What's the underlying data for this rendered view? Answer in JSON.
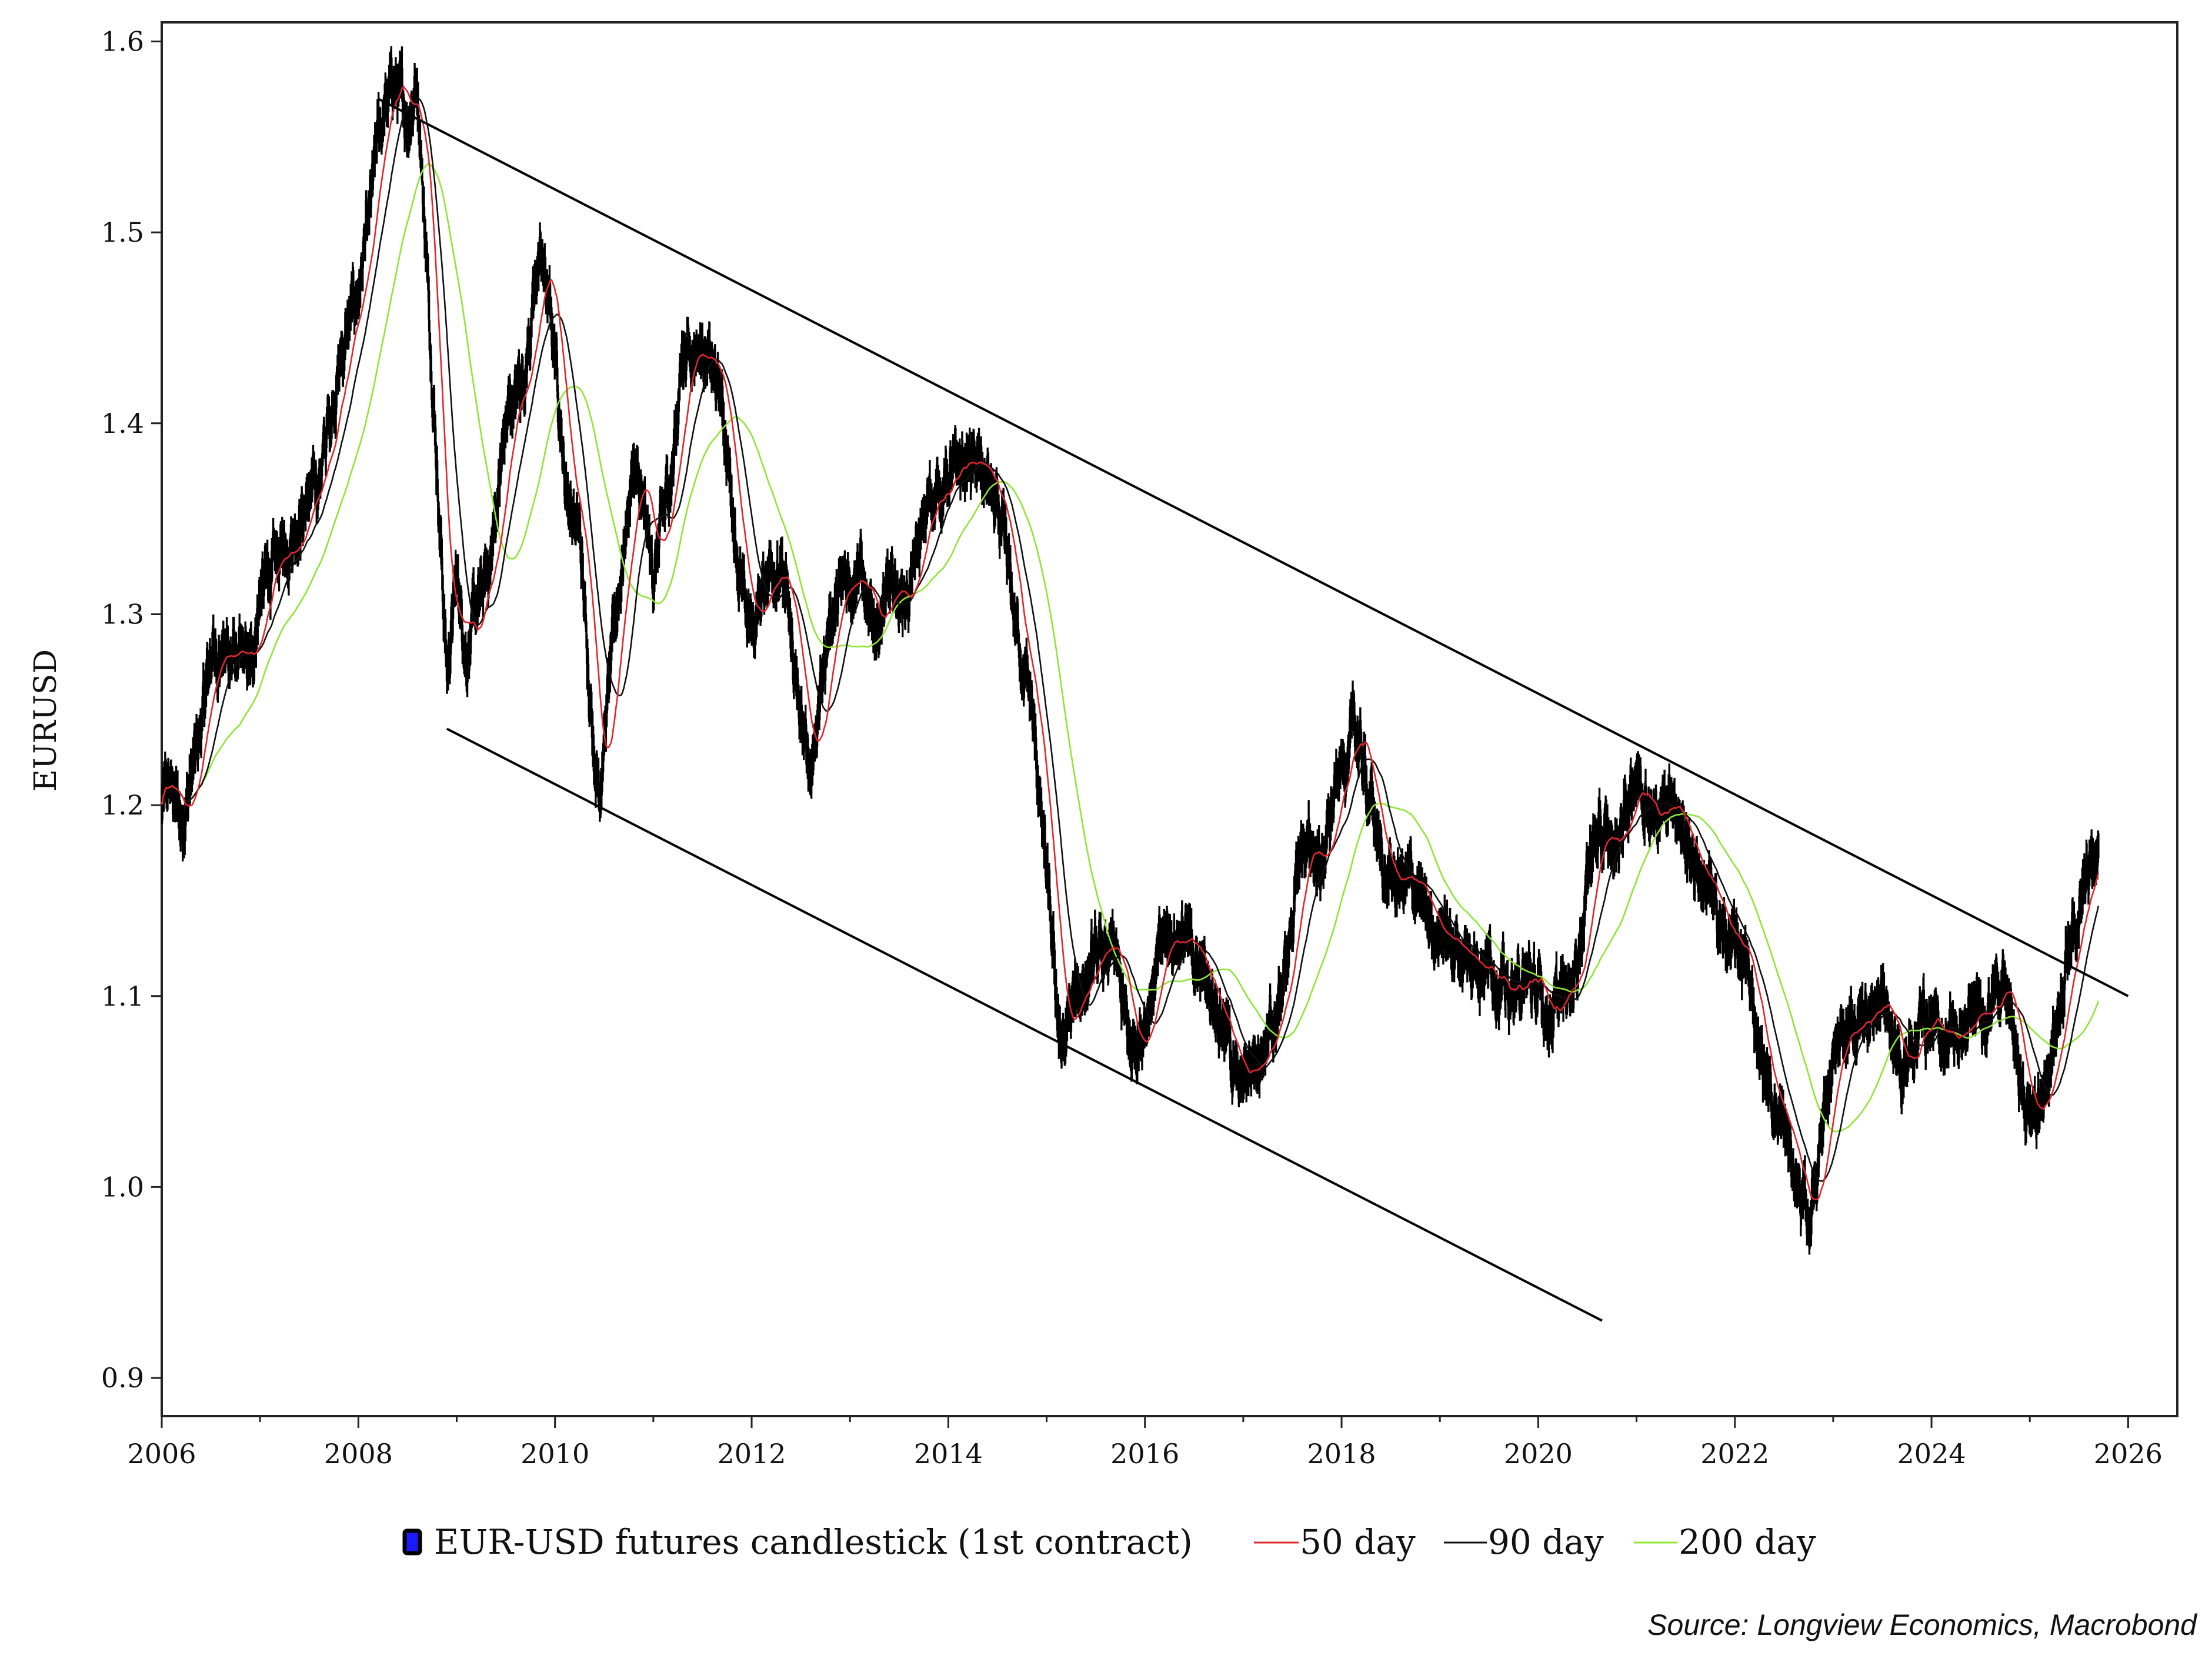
{
  "chart_data": {
    "type": "line",
    "title": "",
    "ylabel": "EURUSD",
    "xlabel": "",
    "xlim": [
      2006,
      2026.5
    ],
    "ylim": [
      0.88,
      1.61
    ],
    "x_ticks": [
      "2006",
      "2008",
      "2010",
      "2012",
      "2014",
      "2016",
      "2018",
      "2020",
      "2022",
      "2024",
      "2026"
    ],
    "y_ticks": [
      "0.9",
      "1.0",
      "1.1",
      "1.2",
      "1.3",
      "1.4",
      "1.5",
      "1.6"
    ],
    "grid": false,
    "legend_position": "bottom",
    "source": "Source: Longview Economics, Macrobond",
    "price_anchors": [
      [
        2006.0,
        1.2
      ],
      [
        2006.1,
        1.21
      ],
      [
        2006.2,
        1.19
      ],
      [
        2006.4,
        1.24
      ],
      [
        2006.5,
        1.28
      ],
      [
        2006.7,
        1.28
      ],
      [
        2006.9,
        1.27
      ],
      [
        2007.0,
        1.31
      ],
      [
        2007.2,
        1.33
      ],
      [
        2007.4,
        1.35
      ],
      [
        2007.6,
        1.37
      ],
      [
        2007.8,
        1.43
      ],
      [
        2008.0,
        1.47
      ],
      [
        2008.1,
        1.5
      ],
      [
        2008.2,
        1.55
      ],
      [
        2008.35,
        1.58
      ],
      [
        2008.5,
        1.56
      ],
      [
        2008.6,
        1.58
      ],
      [
        2008.7,
        1.48
      ],
      [
        2008.8,
        1.38
      ],
      [
        2008.9,
        1.27
      ],
      [
        2009.0,
        1.32
      ],
      [
        2009.1,
        1.28
      ],
      [
        2009.2,
        1.3
      ],
      [
        2009.35,
        1.33
      ],
      [
        2009.5,
        1.4
      ],
      [
        2009.7,
        1.43
      ],
      [
        2009.85,
        1.49
      ],
      [
        2010.0,
        1.44
      ],
      [
        2010.1,
        1.37
      ],
      [
        2010.25,
        1.34
      ],
      [
        2010.4,
        1.23
      ],
      [
        2010.45,
        1.21
      ],
      [
        2010.6,
        1.29
      ],
      [
        2010.8,
        1.38
      ],
      [
        2011.0,
        1.32
      ],
      [
        2011.2,
        1.38
      ],
      [
        2011.3,
        1.44
      ],
      [
        2011.5,
        1.44
      ],
      [
        2011.7,
        1.41
      ],
      [
        2011.8,
        1.36
      ],
      [
        2011.9,
        1.31
      ],
      [
        2012.0,
        1.29
      ],
      [
        2012.2,
        1.33
      ],
      [
        2012.35,
        1.31
      ],
      [
        2012.5,
        1.24
      ],
      [
        2012.6,
        1.22
      ],
      [
        2012.8,
        1.3
      ],
      [
        2012.9,
        1.31
      ],
      [
        2013.1,
        1.33
      ],
      [
        2013.2,
        1.29
      ],
      [
        2013.4,
        1.31
      ],
      [
        2013.6,
        1.31
      ],
      [
        2013.8,
        1.36
      ],
      [
        2014.0,
        1.37
      ],
      [
        2014.2,
        1.38
      ],
      [
        2014.4,
        1.37
      ],
      [
        2014.55,
        1.34
      ],
      [
        2014.7,
        1.29
      ],
      [
        2014.85,
        1.25
      ],
      [
        2015.0,
        1.16
      ],
      [
        2015.15,
        1.07
      ],
      [
        2015.3,
        1.1
      ],
      [
        2015.5,
        1.12
      ],
      [
        2015.7,
        1.12
      ],
      [
        2015.85,
        1.07
      ],
      [
        2016.0,
        1.09
      ],
      [
        2016.2,
        1.13
      ],
      [
        2016.4,
        1.13
      ],
      [
        2016.6,
        1.11
      ],
      [
        2016.8,
        1.09
      ],
      [
        2016.95,
        1.05
      ],
      [
        2017.1,
        1.07
      ],
      [
        2017.3,
        1.08
      ],
      [
        2017.45,
        1.12
      ],
      [
        2017.6,
        1.18
      ],
      [
        2017.8,
        1.17
      ],
      [
        2018.0,
        1.22
      ],
      [
        2018.15,
        1.24
      ],
      [
        2018.3,
        1.2
      ],
      [
        2018.45,
        1.16
      ],
      [
        2018.7,
        1.16
      ],
      [
        2018.9,
        1.14
      ],
      [
        2019.1,
        1.13
      ],
      [
        2019.3,
        1.12
      ],
      [
        2019.5,
        1.12
      ],
      [
        2019.7,
        1.1
      ],
      [
        2019.9,
        1.11
      ],
      [
        2020.1,
        1.09
      ],
      [
        2020.25,
        1.1
      ],
      [
        2020.4,
        1.12
      ],
      [
        2020.55,
        1.18
      ],
      [
        2020.8,
        1.18
      ],
      [
        2021.0,
        1.22
      ],
      [
        2021.2,
        1.19
      ],
      [
        2021.35,
        1.21
      ],
      [
        2021.5,
        1.18
      ],
      [
        2021.7,
        1.16
      ],
      [
        2021.9,
        1.13
      ],
      [
        2022.1,
        1.12
      ],
      [
        2022.3,
        1.06
      ],
      [
        2022.55,
        1.02
      ],
      [
        2022.75,
        0.98
      ],
      [
        2022.9,
        1.04
      ],
      [
        2023.05,
        1.07
      ],
      [
        2023.3,
        1.09
      ],
      [
        2023.5,
        1.1
      ],
      [
        2023.7,
        1.06
      ],
      [
        2023.9,
        1.09
      ],
      [
        2024.1,
        1.08
      ],
      [
        2024.3,
        1.08
      ],
      [
        2024.5,
        1.09
      ],
      [
        2024.7,
        1.11
      ],
      [
        2024.8,
        1.09
      ],
      [
        2024.95,
        1.04
      ],
      [
        2025.1,
        1.04
      ],
      [
        2025.25,
        1.08
      ],
      [
        2025.4,
        1.13
      ],
      [
        2025.55,
        1.16
      ],
      [
        2025.7,
        1.17
      ]
    ],
    "series": [
      {
        "name": "EUR-USD futures candlestick (1st contract)",
        "color": "#000000",
        "role": "candlestick"
      },
      {
        "name": "50 day",
        "color": "#e3262b",
        "window_years": 0.2,
        "role": "ma"
      },
      {
        "name": "90 day",
        "color": "#111111",
        "window_years": 0.36,
        "role": "ma"
      },
      {
        "name": "200 day",
        "color": "#8de633",
        "window_years": 0.8,
        "role": "ma"
      }
    ],
    "trendlines": [
      {
        "name": "upper-channel",
        "x": [
          2008.2,
          2026.0
        ],
        "y": [
          1.57,
          1.1
        ]
      },
      {
        "name": "lower-channel",
        "x": [
          2008.9,
          2020.65
        ],
        "y": [
          1.24,
          0.93
        ]
      }
    ]
  },
  "legend": {
    "items": [
      {
        "label": "EUR-USD futures candlestick (1st contract)",
        "color": "#000000",
        "marker": "candle"
      },
      {
        "label": "50 day",
        "color": "#e3262b",
        "marker": "line"
      },
      {
        "label": "90 day",
        "color": "#111111",
        "marker": "line"
      },
      {
        "label": "200 day",
        "color": "#8de633",
        "marker": "line"
      }
    ]
  },
  "source": "Source: Longview Economics, Macrobond"
}
